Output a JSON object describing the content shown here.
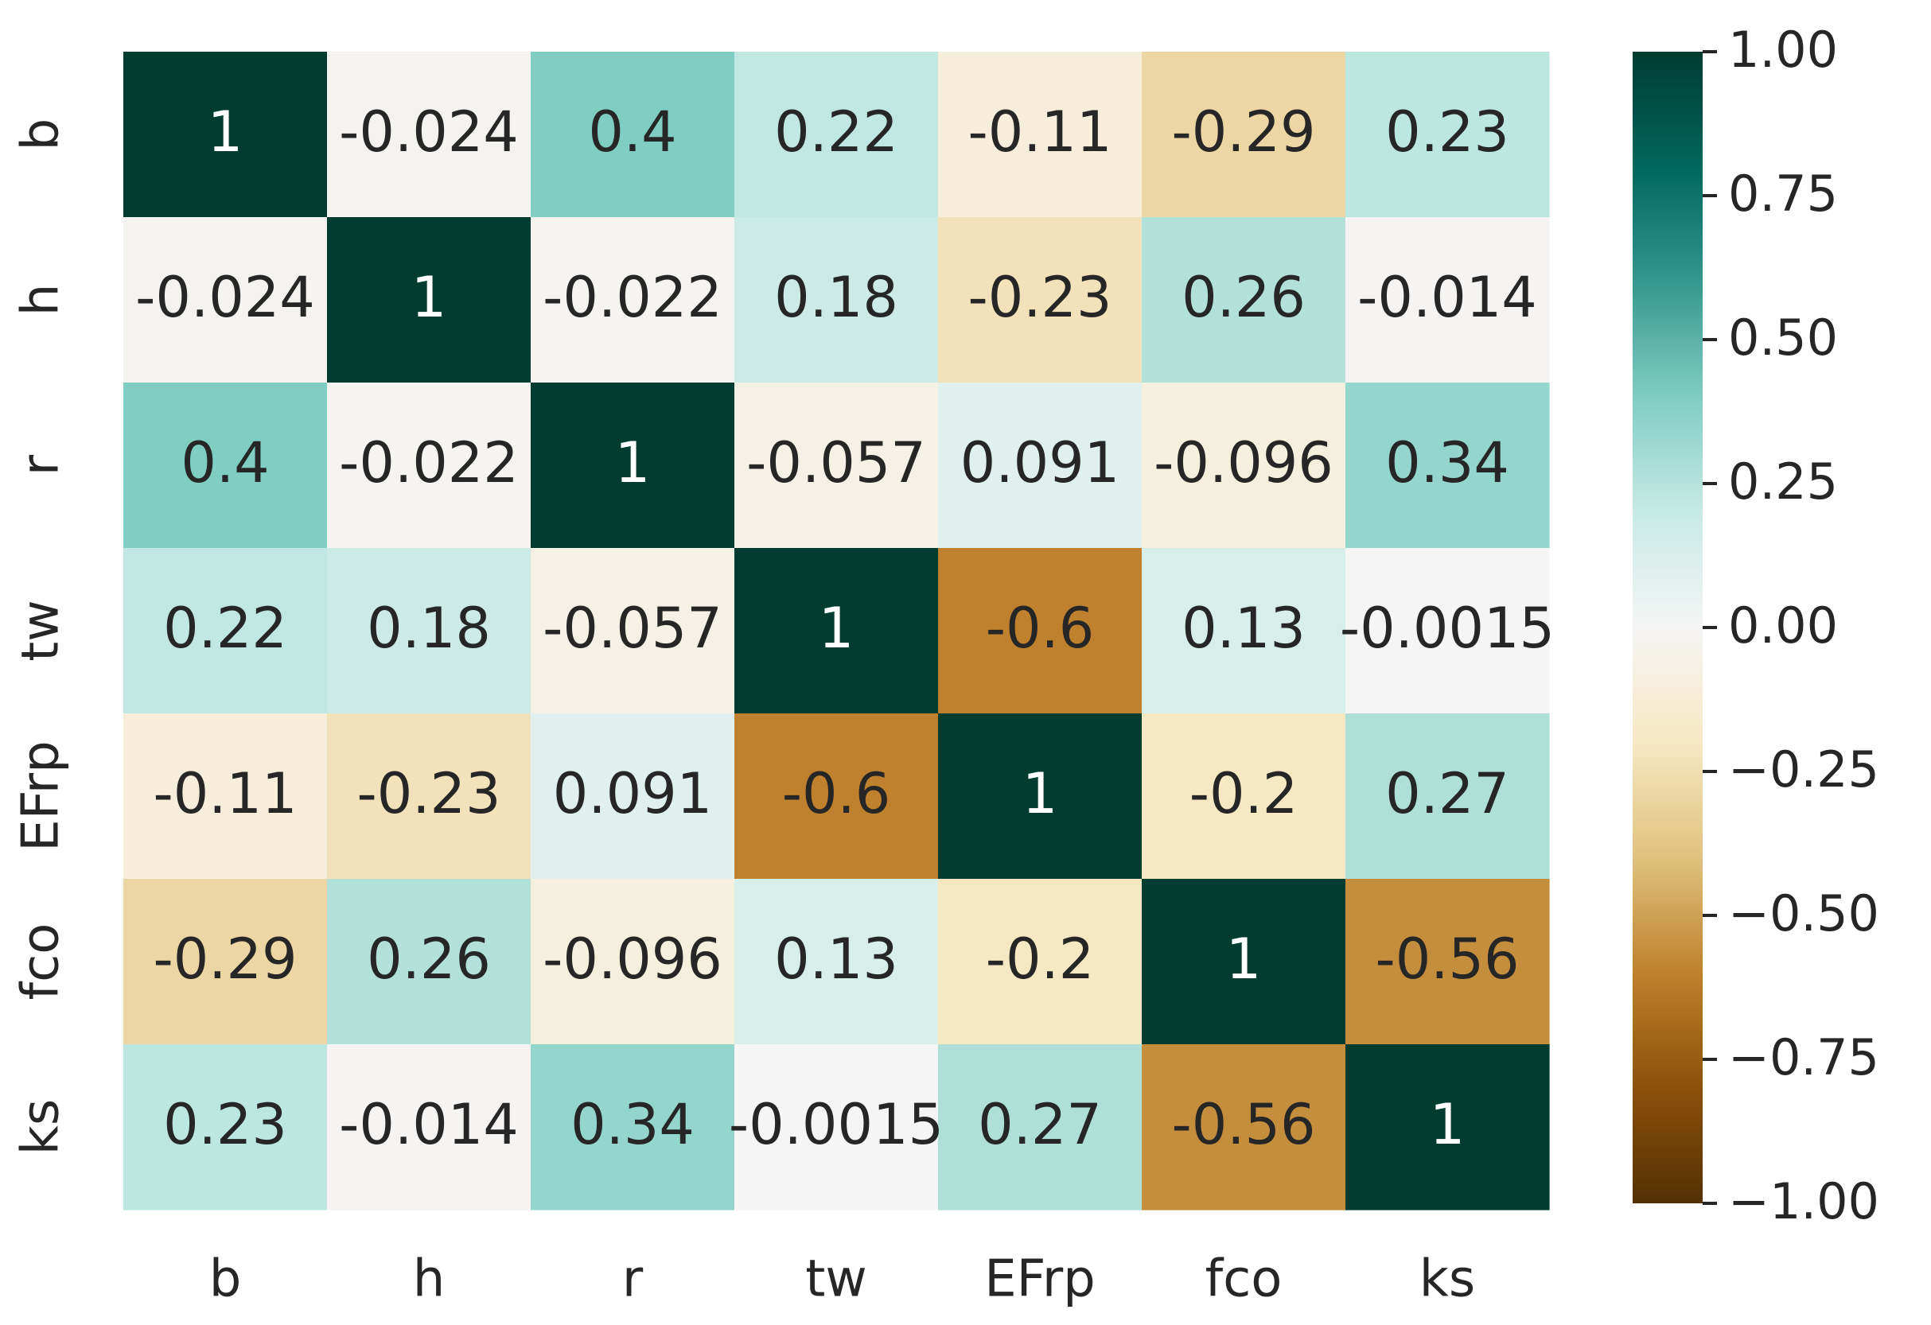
{
  "chart_data": {
    "type": "heatmap",
    "title": "",
    "xlabel": "",
    "ylabel": "",
    "variables": [
      "b",
      "h",
      "r",
      "tw",
      "EFrp",
      "fco",
      "ks"
    ],
    "matrix": [
      [
        1,
        -0.024,
        0.4,
        0.22,
        -0.11,
        -0.29,
        0.23
      ],
      [
        -0.024,
        1,
        -0.022,
        0.18,
        -0.23,
        0.26,
        -0.014
      ],
      [
        0.4,
        -0.022,
        1,
        -0.057,
        0.091,
        -0.096,
        0.34
      ],
      [
        0.22,
        0.18,
        -0.057,
        1,
        -0.6,
        0.13,
        -0.0015
      ],
      [
        -0.11,
        -0.23,
        0.091,
        -0.6,
        1,
        -0.2,
        0.27
      ],
      [
        -0.29,
        0.26,
        -0.096,
        0.13,
        -0.2,
        1,
        -0.56
      ],
      [
        0.23,
        -0.014,
        0.34,
        -0.0015,
        0.27,
        -0.56,
        1
      ]
    ],
    "labels": [
      [
        "1",
        "-0.024",
        "0.4",
        "0.22",
        "-0.11",
        "-0.29",
        "0.23"
      ],
      [
        "-0.024",
        "1",
        "-0.022",
        "0.18",
        "-0.23",
        "0.26",
        "-0.014"
      ],
      [
        "0.4",
        "-0.022",
        "1",
        "-0.057",
        "0.091",
        "-0.096",
        "0.34"
      ],
      [
        "0.22",
        "0.18",
        "-0.057",
        "1",
        "-0.6",
        "0.13",
        "-0.0015"
      ],
      [
        "-0.11",
        "-0.23",
        "0.091",
        "-0.6",
        "1",
        "-0.2",
        "0.27"
      ],
      [
        "-0.29",
        "0.26",
        "-0.096",
        "0.13",
        "-0.2",
        "1",
        "-0.56"
      ],
      [
        "0.23",
        "-0.014",
        "0.34",
        "-0.0015",
        "0.27",
        "-0.56",
        "1"
      ]
    ],
    "colormap": "BrBG",
    "vmin": -1,
    "vmax": 1,
    "colorbar": {
      "ticks": [
        1.0,
        0.75,
        0.5,
        0.25,
        0.0,
        -0.25,
        -0.5,
        -0.75,
        -1.0
      ],
      "tick_labels": [
        "1.00",
        "0.75",
        "0.50",
        "0.25",
        "0.00",
        "−0.25",
        "−0.50",
        "−0.75",
        "−1.00"
      ]
    },
    "colormap_stops": [
      "#543005",
      "#8c510a",
      "#bf812d",
      "#dfc27d",
      "#f6e8c3",
      "#f5f5f5",
      "#c7eae5",
      "#80cdc1",
      "#35978f",
      "#01665e",
      "#003c30"
    ],
    "text_colors": {
      "dark": "#262626",
      "light": "#ffffff"
    }
  }
}
